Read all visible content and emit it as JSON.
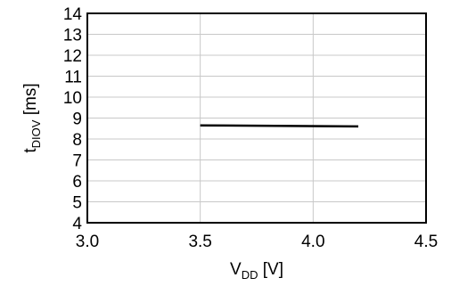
{
  "chart_data": {
    "type": "line",
    "title": "",
    "xlabel": {
      "main": "V",
      "sub": "DD",
      "unit": " [V]"
    },
    "ylabel": {
      "main": "t",
      "sub": "DIOV",
      "unit": " [ms]"
    },
    "xlim": [
      3.0,
      4.5
    ],
    "ylim": [
      4,
      14
    ],
    "x_ticks": [
      "3.0",
      "3.5",
      "4.0",
      "4.5"
    ],
    "x_tick_values": [
      3.0,
      3.5,
      4.0,
      4.5
    ],
    "y_ticks": [
      "4",
      "5",
      "6",
      "7",
      "8",
      "9",
      "10",
      "11",
      "12",
      "13",
      "14"
    ],
    "y_tick_values": [
      4,
      5,
      6,
      7,
      8,
      9,
      10,
      11,
      12,
      13,
      14
    ],
    "grid": true,
    "series": [
      {
        "x": [
          3.5,
          4.2
        ],
        "values": [
          8.65,
          8.6
        ]
      }
    ]
  }
}
